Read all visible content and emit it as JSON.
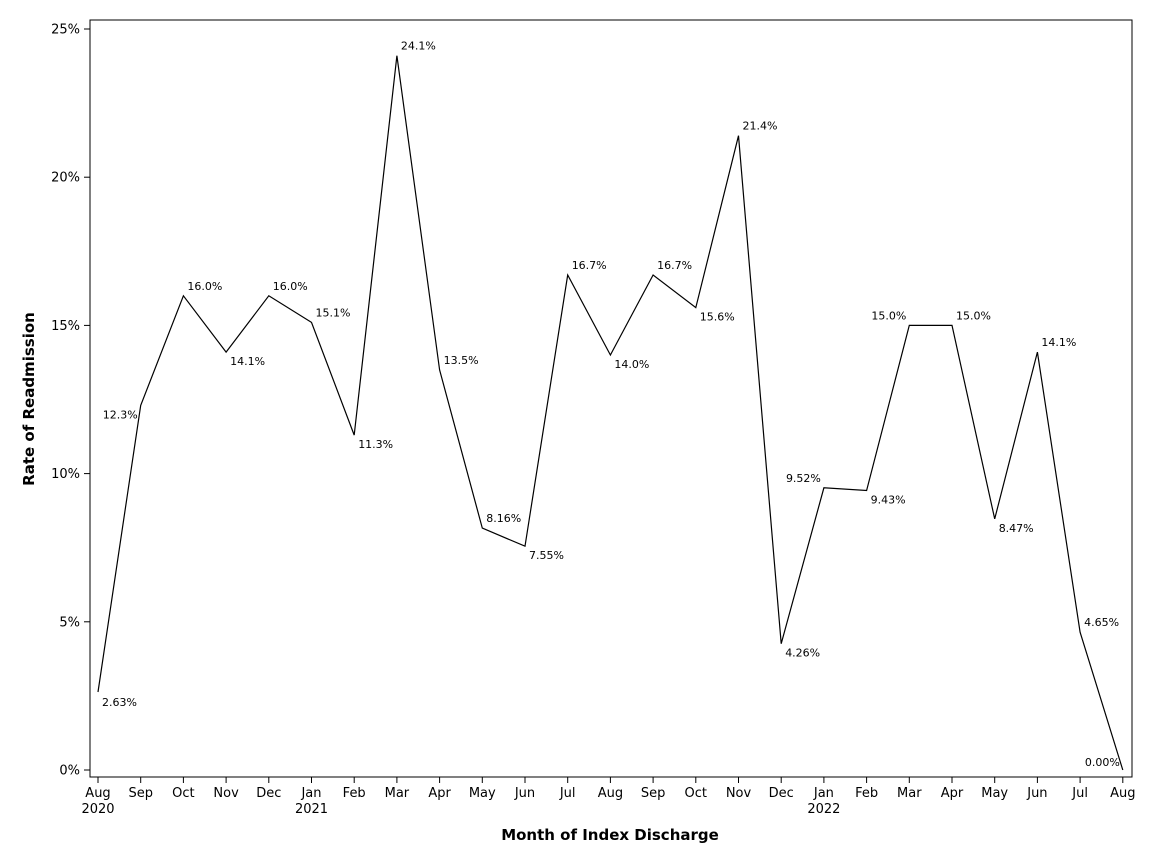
{
  "chart_data": {
    "type": "line",
    "xlabel": "Month of Index Discharge",
    "ylabel": "Rate of Readmission",
    "ylim": [
      0,
      25
    ],
    "y_ticks": [
      0,
      5,
      10,
      15,
      20,
      25
    ],
    "y_tick_labels": [
      "0%",
      "5%",
      "10%",
      "15%",
      "20%",
      "25%"
    ],
    "categories": [
      "Aug",
      "Sep",
      "Oct",
      "Nov",
      "Dec",
      "Jan",
      "Feb",
      "Mar",
      "Apr",
      "May",
      "Jun",
      "Jul",
      "Aug",
      "Sep",
      "Oct",
      "Nov",
      "Dec",
      "Jan",
      "Feb",
      "Mar",
      "Apr",
      "May",
      "Jun",
      "Jul",
      "Aug"
    ],
    "year_labels": {
      "0": "2020",
      "5": "2021",
      "17": "2022"
    },
    "values": [
      2.63,
      12.3,
      16.0,
      14.1,
      16.0,
      15.1,
      11.3,
      24.1,
      13.5,
      8.16,
      7.55,
      16.7,
      14.0,
      16.7,
      15.6,
      21.4,
      4.26,
      9.52,
      9.43,
      15.0,
      15.0,
      8.47,
      14.1,
      4.65,
      0.0
    ],
    "data_labels": [
      "2.63%",
      "12.3%",
      "16.0%",
      "14.1%",
      "16.0%",
      "15.1%",
      "11.3%",
      "24.1%",
      "13.5%",
      "8.16%",
      "7.55%",
      "16.7%",
      "14.0%",
      "16.7%",
      "15.6%",
      "21.4%",
      "4.26%",
      "9.52%",
      "9.43%",
      "15.0%",
      "15.0%",
      "8.47%",
      "14.1%",
      "4.65%",
      "0.00%"
    ],
    "grid": false,
    "legend": "none"
  }
}
